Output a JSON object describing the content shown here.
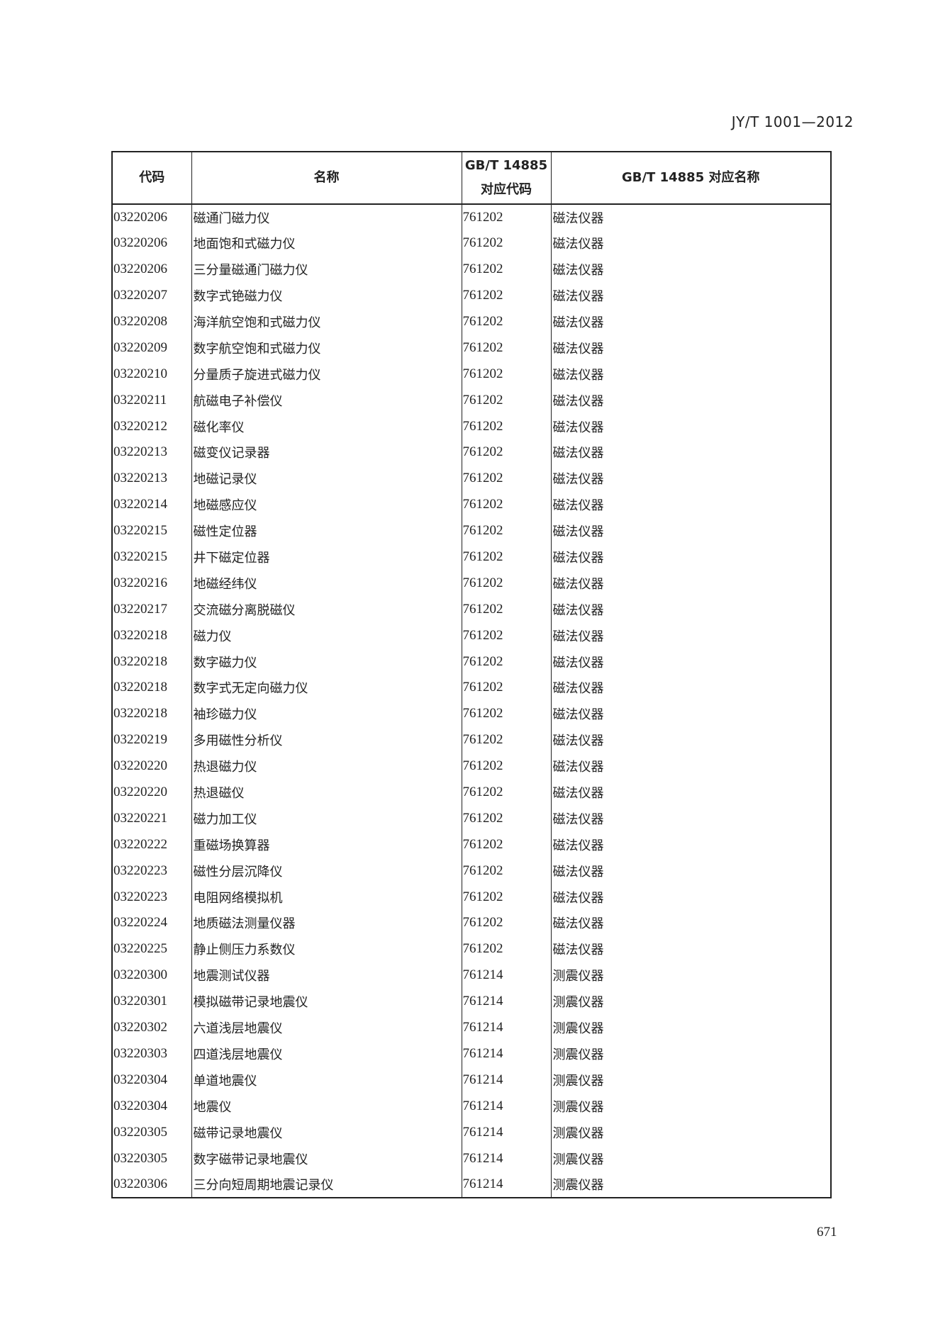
{
  "header": {
    "standard": "JY/T 1001—2012"
  },
  "table": {
    "columns": [
      "代码",
      "名称",
      "GB/T 14885\n对应代码",
      "GB/T 14885 对应名称"
    ],
    "col3_line1": "GB/T 14885",
    "col3_line2": "对应代码",
    "rows": [
      [
        "03220206",
        "磁通门磁力仪",
        "761202",
        "磁法仪器"
      ],
      [
        "03220206",
        "地面饱和式磁力仪",
        "761202",
        "磁法仪器"
      ],
      [
        "03220206",
        "三分量磁通门磁力仪",
        "761202",
        "磁法仪器"
      ],
      [
        "03220207",
        "数字式铯磁力仪",
        "761202",
        "磁法仪器"
      ],
      [
        "03220208",
        "海洋航空饱和式磁力仪",
        "761202",
        "磁法仪器"
      ],
      [
        "03220209",
        "数字航空饱和式磁力仪",
        "761202",
        "磁法仪器"
      ],
      [
        "03220210",
        "分量质子旋进式磁力仪",
        "761202",
        "磁法仪器"
      ],
      [
        "03220211",
        "航磁电子补偿仪",
        "761202",
        "磁法仪器"
      ],
      [
        "03220212",
        "磁化率仪",
        "761202",
        "磁法仪器"
      ],
      [
        "03220213",
        "磁变仪记录器",
        "761202",
        "磁法仪器"
      ],
      [
        "03220213",
        "地磁记录仪",
        "761202",
        "磁法仪器"
      ],
      [
        "03220214",
        "地磁感应仪",
        "761202",
        "磁法仪器"
      ],
      [
        "03220215",
        "磁性定位器",
        "761202",
        "磁法仪器"
      ],
      [
        "03220215",
        "井下磁定位器",
        "761202",
        "磁法仪器"
      ],
      [
        "03220216",
        "地磁经纬仪",
        "761202",
        "磁法仪器"
      ],
      [
        "03220217",
        "交流磁分离脱磁仪",
        "761202",
        "磁法仪器"
      ],
      [
        "03220218",
        "磁力仪",
        "761202",
        "磁法仪器"
      ],
      [
        "03220218",
        "数字磁力仪",
        "761202",
        "磁法仪器"
      ],
      [
        "03220218",
        "数字式无定向磁力仪",
        "761202",
        "磁法仪器"
      ],
      [
        "03220218",
        "袖珍磁力仪",
        "761202",
        "磁法仪器"
      ],
      [
        "03220219",
        "多用磁性分析仪",
        "761202",
        "磁法仪器"
      ],
      [
        "03220220",
        "热退磁力仪",
        "761202",
        "磁法仪器"
      ],
      [
        "03220220",
        "热退磁仪",
        "761202",
        "磁法仪器"
      ],
      [
        "03220221",
        "磁力加工仪",
        "761202",
        "磁法仪器"
      ],
      [
        "03220222",
        "重磁场换算器",
        "761202",
        "磁法仪器"
      ],
      [
        "03220223",
        "磁性分层沉降仪",
        "761202",
        "磁法仪器"
      ],
      [
        "03220223",
        "电阻网络模拟机",
        "761202",
        "磁法仪器"
      ],
      [
        "03220224",
        "地质磁法测量仪器",
        "761202",
        "磁法仪器"
      ],
      [
        "03220225",
        "静止侧压力系数仪",
        "761202",
        "磁法仪器"
      ],
      [
        "03220300",
        "地震测试仪器",
        "761214",
        "测震仪器"
      ],
      [
        "03220301",
        "模拟磁带记录地震仪",
        "761214",
        "测震仪器"
      ],
      [
        "03220302",
        "六道浅层地震仪",
        "761214",
        "测震仪器"
      ],
      [
        "03220303",
        "四道浅层地震仪",
        "761214",
        "测震仪器"
      ],
      [
        "03220304",
        "单道地震仪",
        "761214",
        "测震仪器"
      ],
      [
        "03220304",
        "地震仪",
        "761214",
        "测震仪器"
      ],
      [
        "03220305",
        "磁带记录地震仪",
        "761214",
        "测震仪器"
      ],
      [
        "03220305",
        "数字磁带记录地震仪",
        "761214",
        "测震仪器"
      ],
      [
        "03220306",
        "三分向短周期地震记录仪",
        "761214",
        "测震仪器"
      ]
    ]
  },
  "footer": {
    "page_number": "671"
  }
}
